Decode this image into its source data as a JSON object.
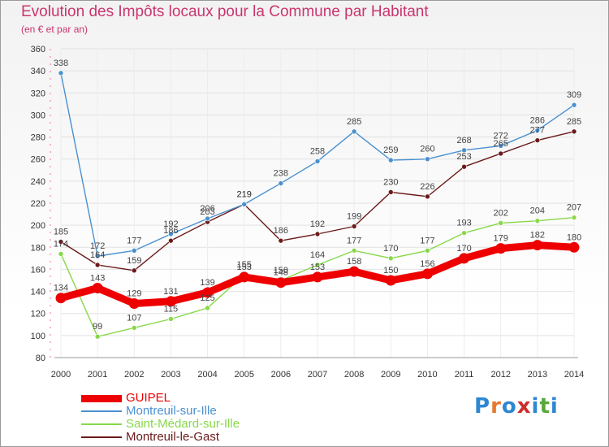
{
  "title": "Evolution des Impôts locaux pour la Commune par Habitant",
  "subtitle": "(en € et par an)",
  "brand": "Proxiti",
  "chart_data": {
    "type": "line",
    "x": [
      "2000",
      "2001",
      "2002",
      "2003",
      "2004",
      "2005",
      "2006",
      "2007",
      "2008",
      "2009",
      "2010",
      "2011",
      "2012",
      "2013",
      "2014"
    ],
    "ylim": [
      80,
      360
    ],
    "yticks": [
      80,
      100,
      120,
      140,
      160,
      180,
      200,
      220,
      240,
      260,
      280,
      300,
      320,
      340,
      360
    ],
    "grid": true,
    "legend_position": "bottom-left",
    "series": [
      {
        "name": "GUIPEL",
        "color": "#ee0000",
        "values": [
          134,
          143,
          129,
          131,
          139,
          153,
          148,
          153,
          158,
          150,
          156,
          170,
          179,
          182,
          180
        ]
      },
      {
        "name": "Montreuil-sur-Ille",
        "color": "#4a90d0",
        "values": [
          338,
          172,
          177,
          192,
          206,
          219,
          238,
          258,
          285,
          259,
          260,
          268,
          272,
          286,
          309
        ]
      },
      {
        "name": "Saint-Médard-sur-Ille",
        "color": "#88d84a",
        "values": [
          174,
          99,
          107,
          115,
          125,
          155,
          150,
          164,
          177,
          170,
          177,
          193,
          202,
          204,
          207
        ]
      },
      {
        "name": "Montreuil-le-Gast",
        "color": "#6b1a1a",
        "values": [
          185,
          164,
          159,
          186,
          203,
          219,
          186,
          192,
          199,
          230,
          226,
          253,
          265,
          277,
          285
        ]
      }
    ]
  }
}
